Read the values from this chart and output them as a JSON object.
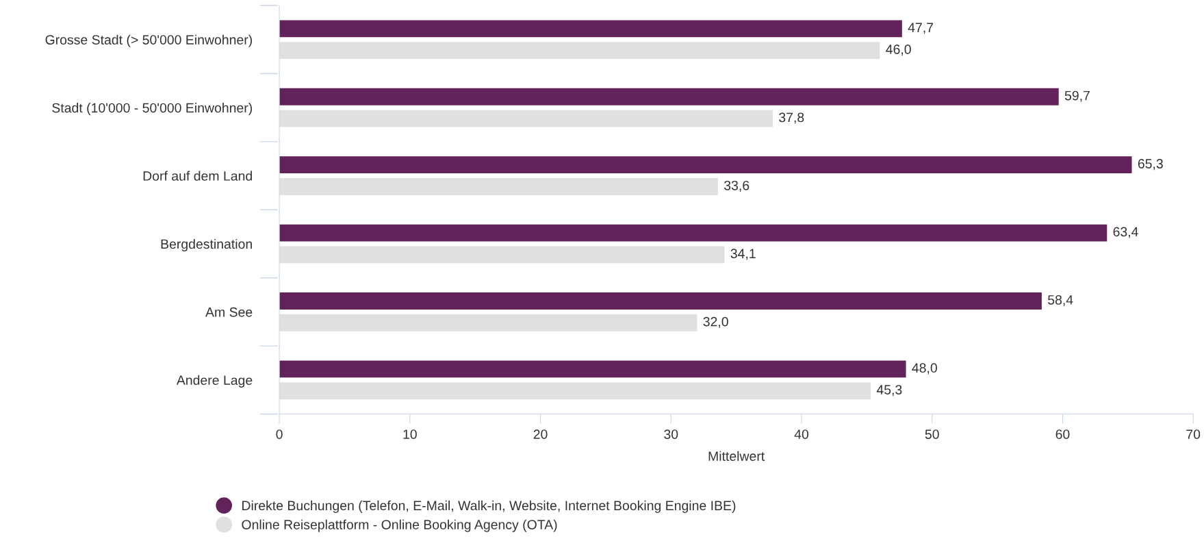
{
  "chart_data": {
    "type": "bar",
    "orientation": "horizontal",
    "xlabel": "Mittelwert",
    "categories": [
      "Grosse Stadt (> 50'000 Einwohner)",
      "Stadt (10'000 - 50'000 Einwohner)",
      "Dorf auf dem Land",
      "Bergdestination",
      "Am See",
      "Andere Lage"
    ],
    "series": [
      {
        "name": "Direkte Buchungen (Telefon, E-Mail, Walk-in, Website, Internet Booking Engine IBE)",
        "color": "#62235a",
        "values": [
          47.7,
          59.7,
          65.3,
          63.4,
          58.4,
          48.0
        ],
        "value_labels": [
          "47,7",
          "59,7",
          "65,3",
          "63,4",
          "58,4",
          "48,0"
        ]
      },
      {
        "name": "Online Reiseplattform - Online Booking Agency (OTA)",
        "color": "#e0e0e0",
        "values": [
          46.0,
          37.8,
          33.6,
          34.1,
          32.0,
          45.3
        ],
        "value_labels": [
          "46,0",
          "37,8",
          "33,6",
          "34,1",
          "32,0",
          "45,3"
        ]
      }
    ],
    "xlim": [
      0,
      70
    ],
    "xticks": [
      0,
      10,
      20,
      30,
      40,
      50,
      60,
      70
    ],
    "grid": false,
    "legend": "bottom"
  }
}
